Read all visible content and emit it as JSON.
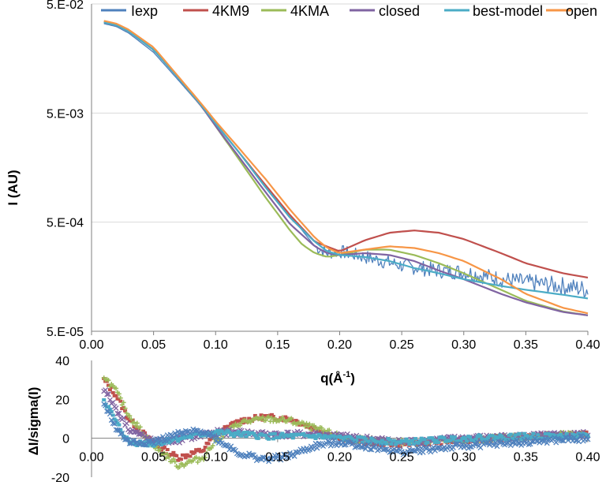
{
  "chart_data": [
    {
      "type": "line",
      "title": "",
      "xlabel": "q(Å-1)",
      "xlabel_main": "q(Å",
      "xlabel_sup": "-1",
      "xlabel_close": ")",
      "ylabel": "I (AU)",
      "y_scale": "log",
      "xlim": [
        0.0,
        0.4
      ],
      "ylim": [
        5e-05,
        0.05
      ],
      "x_ticks": [
        "0.00",
        "0.05",
        "0.10",
        "0.15",
        "0.20",
        "0.25",
        "0.30",
        "0.35",
        "0.40"
      ],
      "y_ticks": [
        "5.E-05",
        "5.E-04",
        "5.E-03",
        "5.E-02"
      ],
      "y_tick_values": [
        5e-05,
        0.0005,
        0.005,
        0.05
      ],
      "legend_position": "top",
      "series": [
        {
          "name": "Iexp",
          "color": "#4f81bd",
          "noisy": true,
          "x": [
            0.01,
            0.02,
            0.03,
            0.05,
            0.07,
            0.09,
            0.1,
            0.12,
            0.14,
            0.16,
            0.18,
            0.19,
            0.2,
            0.22,
            0.25,
            0.28,
            0.3,
            0.33,
            0.35,
            0.38,
            0.4
          ],
          "y": [
            0.033,
            0.031,
            0.027,
            0.018,
            0.01,
            0.0055,
            0.004,
            0.0021,
            0.0011,
            0.00058,
            0.0003,
            0.00026,
            0.00027,
            0.00024,
            0.0002,
            0.00018,
            0.000175,
            0.00015,
            0.00014,
            0.00013,
            0.00012
          ]
        },
        {
          "name": "4KM9",
          "color": "#c0504d",
          "noisy": false,
          "x": [
            0.01,
            0.02,
            0.03,
            0.05,
            0.07,
            0.09,
            0.1,
            0.12,
            0.14,
            0.16,
            0.18,
            0.2,
            0.22,
            0.24,
            0.26,
            0.28,
            0.3,
            0.33,
            0.35,
            0.38,
            0.4
          ],
          "y": [
            0.034,
            0.032,
            0.028,
            0.019,
            0.0105,
            0.0056,
            0.004,
            0.0021,
            0.0011,
            0.00058,
            0.00033,
            0.00027,
            0.00034,
            0.0004,
            0.00042,
            0.0004,
            0.00035,
            0.00026,
            0.00021,
            0.00017,
            0.000155
          ]
        },
        {
          "name": "4KMA",
          "color": "#9bbb59",
          "noisy": false,
          "x": [
            0.01,
            0.02,
            0.03,
            0.05,
            0.07,
            0.09,
            0.1,
            0.12,
            0.14,
            0.16,
            0.17,
            0.18,
            0.19,
            0.2,
            0.22,
            0.24,
            0.26,
            0.28,
            0.3,
            0.33,
            0.35,
            0.38,
            0.4
          ],
          "y": [
            0.034,
            0.032,
            0.028,
            0.019,
            0.0105,
            0.0055,
            0.0038,
            0.0018,
            0.00085,
            0.00042,
            0.00031,
            0.00026,
            0.00024,
            0.00025,
            0.00028,
            0.00028,
            0.00025,
            0.00021,
            0.00017,
            0.00012,
            9.5e-05,
            7.6e-05,
            7e-05
          ]
        },
        {
          "name": "closed",
          "color": "#8064a2",
          "noisy": false,
          "x": [
            0.01,
            0.02,
            0.03,
            0.05,
            0.07,
            0.09,
            0.1,
            0.12,
            0.14,
            0.16,
            0.18,
            0.19,
            0.2,
            0.22,
            0.24,
            0.26,
            0.28,
            0.3,
            0.33,
            0.35,
            0.38,
            0.4
          ],
          "y": [
            0.034,
            0.032,
            0.028,
            0.019,
            0.0105,
            0.0055,
            0.0038,
            0.0019,
            0.00095,
            0.00048,
            0.0003,
            0.00026,
            0.00025,
            0.00026,
            0.00025,
            0.00022,
            0.00018,
            0.00015,
            0.00011,
            9.2e-05,
            7.5e-05,
            7e-05
          ]
        },
        {
          "name": "best-model",
          "color": "#4bacc6",
          "noisy": false,
          "x": [
            0.01,
            0.02,
            0.03,
            0.05,
            0.07,
            0.09,
            0.1,
            0.12,
            0.14,
            0.16,
            0.18,
            0.19,
            0.2,
            0.22,
            0.24,
            0.26,
            0.28,
            0.3,
            0.33,
            0.35,
            0.38,
            0.4
          ],
          "y": [
            0.034,
            0.032,
            0.028,
            0.019,
            0.0105,
            0.0056,
            0.004,
            0.0021,
            0.00105,
            0.00055,
            0.00033,
            0.00027,
            0.00025,
            0.00024,
            0.00022,
            0.00019,
            0.00017,
            0.00015,
            0.00013,
            0.00012,
            0.000108,
            0.0001
          ]
        },
        {
          "name": "open",
          "color": "#f79646",
          "noisy": false,
          "x": [
            0.01,
            0.02,
            0.03,
            0.05,
            0.07,
            0.09,
            0.1,
            0.12,
            0.14,
            0.16,
            0.18,
            0.19,
            0.2,
            0.22,
            0.24,
            0.26,
            0.28,
            0.3,
            0.33,
            0.35,
            0.38,
            0.4
          ],
          "y": [
            0.035,
            0.033,
            0.029,
            0.02,
            0.0108,
            0.0058,
            0.0042,
            0.0023,
            0.00125,
            0.00065,
            0.00036,
            0.00029,
            0.00026,
            0.00028,
            0.0003,
            0.00029,
            0.00026,
            0.00022,
            0.00015,
            0.00011,
            8.2e-05,
            7.3e-05
          ]
        }
      ]
    },
    {
      "type": "scatter",
      "title": "",
      "xlabel": "",
      "ylabel": "ΔI/sigma(I)",
      "xlim": [
        0.0,
        0.4
      ],
      "ylim": [
        -20,
        40
      ],
      "x_ticks": [
        "0.00",
        "0.05",
        "0.10",
        "0.15",
        "0.20",
        "0.25",
        "0.30",
        "0.35",
        "0.40"
      ],
      "y_ticks": [
        "-20",
        "0",
        "20",
        "40"
      ],
      "y_tick_values": [
        -20,
        0,
        20,
        40
      ],
      "series": [
        {
          "name": "4KM9",
          "color": "#c0504d",
          "marker": "square",
          "x": [
            0.01,
            0.02,
            0.03,
            0.05,
            0.07,
            0.09,
            0.1,
            0.12,
            0.14,
            0.16,
            0.18,
            0.2,
            0.22,
            0.25,
            0.3,
            0.35,
            0.4
          ],
          "y": [
            30,
            22,
            10,
            -3,
            -10,
            -6,
            2,
            9,
            11,
            10,
            5,
            0,
            -2,
            -3,
            -1,
            1,
            2
          ]
        },
        {
          "name": "4KMA",
          "color": "#9bbb59",
          "marker": "plus",
          "x": [
            0.01,
            0.02,
            0.03,
            0.05,
            0.07,
            0.09,
            0.1,
            0.12,
            0.14,
            0.16,
            0.18,
            0.2,
            0.22,
            0.25,
            0.3,
            0.35,
            0.4
          ],
          "y": [
            32,
            24,
            12,
            -4,
            -14,
            -10,
            -1,
            8,
            10,
            9,
            5,
            1,
            -1,
            -2,
            -1,
            1,
            2
          ]
        },
        {
          "name": "closed",
          "color": "#8064a2",
          "marker": "x",
          "x": [
            0.01,
            0.02,
            0.03,
            0.05,
            0.07,
            0.09,
            0.1,
            0.12,
            0.14,
            0.16,
            0.18,
            0.2,
            0.22,
            0.25,
            0.3,
            0.35,
            0.4
          ],
          "y": [
            25,
            15,
            5,
            -2,
            -1,
            2,
            3,
            3,
            2,
            2,
            2,
            1,
            0,
            -2,
            0,
            1,
            2
          ]
        },
        {
          "name": "best-model",
          "color": "#4bacc6",
          "marker": "square",
          "x": [
            0.01,
            0.02,
            0.03,
            0.05,
            0.07,
            0.09,
            0.1,
            0.12,
            0.14,
            0.16,
            0.18,
            0.2,
            0.22,
            0.25,
            0.3,
            0.35,
            0.4
          ],
          "y": [
            20,
            8,
            -2,
            -3,
            0,
            2,
            3,
            2,
            1,
            1,
            1,
            0,
            -1,
            -2,
            0,
            1,
            1
          ]
        },
        {
          "name": "open",
          "color": "#4f81bd",
          "marker": "x",
          "x": [
            0.01,
            0.02,
            0.03,
            0.05,
            0.07,
            0.09,
            0.1,
            0.12,
            0.14,
            0.16,
            0.18,
            0.2,
            0.22,
            0.25,
            0.3,
            0.35,
            0.4
          ],
          "y": [
            18,
            5,
            -2,
            -2,
            2,
            4,
            0,
            -8,
            -11,
            -9,
            -4,
            -2,
            -4,
            -7,
            -4,
            -2,
            0
          ]
        }
      ]
    }
  ]
}
